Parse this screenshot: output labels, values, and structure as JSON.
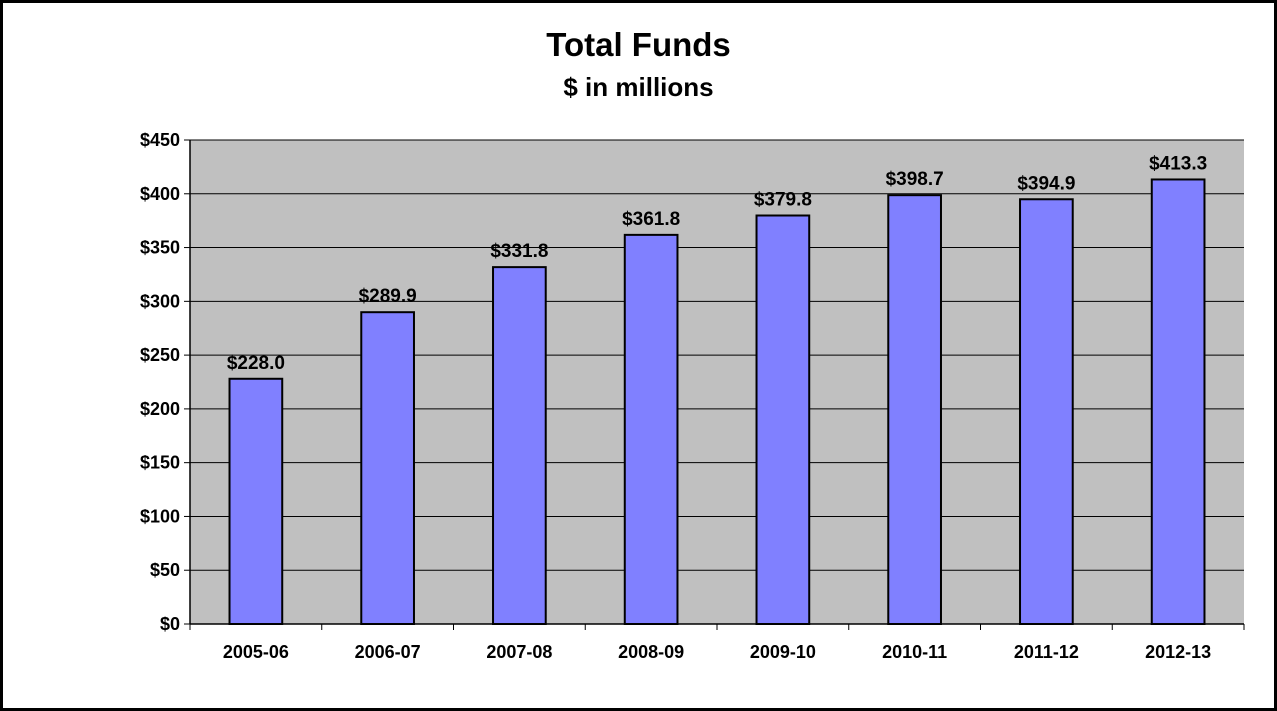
{
  "chart_data": {
    "type": "bar",
    "title": "Total Funds",
    "subtitle": "$ in millions",
    "xlabel": "",
    "ylabel": "",
    "categories": [
      "2005-06",
      "2006-07",
      "2007-08",
      "2008-09",
      "2009-10",
      "2010-11",
      "2011-12",
      "2012-13"
    ],
    "values": [
      228.0,
      289.9,
      331.8,
      361.8,
      379.8,
      398.7,
      394.9,
      413.3
    ],
    "data_labels": [
      "$228.0",
      "$289.9",
      "$331.8",
      "$361.8",
      "$379.8",
      "$398.7",
      "$394.9",
      "$413.3"
    ],
    "ylim": [
      0,
      450
    ],
    "yticks": [
      0,
      50,
      100,
      150,
      200,
      250,
      300,
      350,
      400,
      450
    ],
    "ytick_labels": [
      "$0",
      "$50",
      "$100",
      "$150",
      "$200",
      "$250",
      "$300",
      "$350",
      "$400",
      "$450"
    ],
    "grid": true,
    "legend": "none",
    "colors": {
      "bar_fill": "#8080FF",
      "bar_stroke": "#000000",
      "plot_background": "#C0C0C0",
      "gridline": "#000000"
    }
  }
}
